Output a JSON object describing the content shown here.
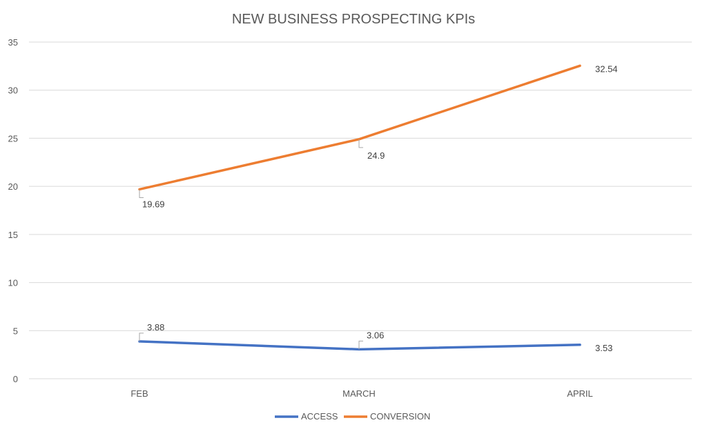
{
  "chart_data": {
    "type": "line",
    "title": "NEW BUSINESS PROSPECTING KPIs",
    "categories": [
      "FEB",
      "MARCH",
      "APRIL"
    ],
    "ylim": [
      0,
      35
    ],
    "yticks": [
      0,
      5,
      10,
      15,
      20,
      25,
      30,
      35
    ],
    "grid": true,
    "legend_position": "bottom",
    "series": [
      {
        "name": "ACCESS",
        "values": [
          3.88,
          3.06,
          3.53
        ],
        "color": "#4472c4",
        "labels": [
          "3.88",
          "3.06",
          "3.53"
        ]
      },
      {
        "name": "CONVERSION",
        "values": [
          19.69,
          24.9,
          32.54
        ],
        "color": "#ed7d31",
        "labels": [
          "19.69",
          "24.9",
          "32.54"
        ]
      }
    ]
  }
}
